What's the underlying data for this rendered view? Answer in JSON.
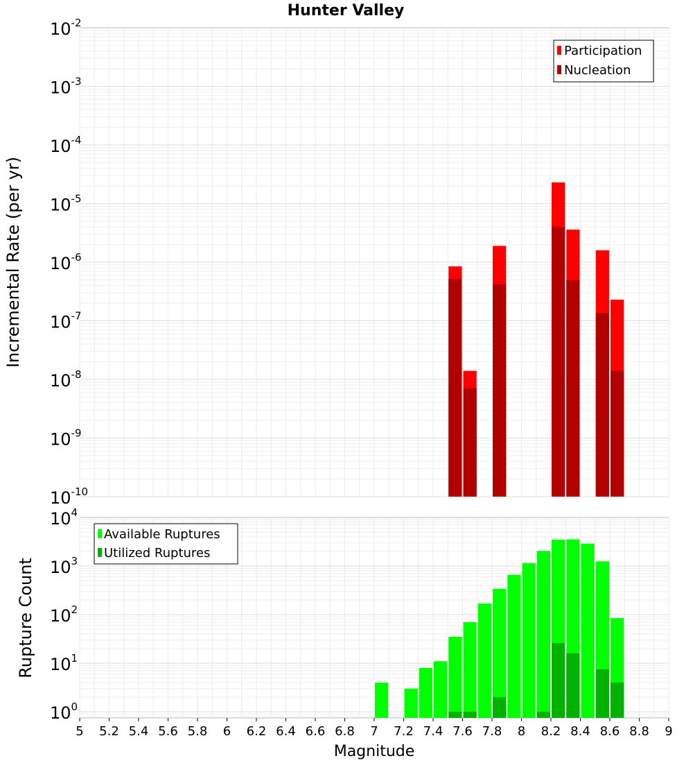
{
  "chart_data": [
    {
      "type": "bar",
      "title": "Hunter Valley",
      "xlabel": "",
      "ylabel": "Incremental Rate (per yr)",
      "yscale": "log",
      "ylim": [
        1e-10,
        0.01
      ],
      "xlim": [
        5,
        9
      ],
      "bar_width": 0.1,
      "legend": {
        "placement": "top-right",
        "entries": [
          "Participation",
          "Nucleation"
        ]
      },
      "x": [
        7.55,
        7.65,
        7.85,
        8.25,
        8.35,
        8.55,
        8.65
      ],
      "series": [
        {
          "name": "Participation",
          "color": "#ff0000",
          "values": [
            8.5e-07,
            1.4e-08,
            1.9e-06,
            2.3e-05,
            3.6e-06,
            1.6e-06,
            2.3e-07
          ]
        },
        {
          "name": "Nucleation",
          "color": "#b20000",
          "values": [
            5.2e-07,
            7e-09,
            4.2e-07,
            4e-06,
            4.9e-07,
            1.35e-07,
            1.4e-08
          ]
        }
      ]
    },
    {
      "type": "bar",
      "title": "",
      "xlabel": "Magnitude",
      "ylabel": "Rupture Count",
      "yscale": "log",
      "ylim": [
        0.75,
        10000
      ],
      "xlim": [
        5,
        9
      ],
      "bar_width": 0.1,
      "legend": {
        "placement": "top-left",
        "entries": [
          "Available Ruptures",
          "Utilized Ruptures"
        ]
      },
      "x_ticks": [
        "5",
        "5.2",
        "5.4",
        "5.6",
        "5.8",
        "6",
        "6.2",
        "6.4",
        "6.6",
        "6.8",
        "7",
        "7.2",
        "7.4",
        "7.6",
        "7.8",
        "8",
        "8.2",
        "8.4",
        "8.6",
        "8.8",
        "9"
      ],
      "x": [
        7.05,
        7.25,
        7.35,
        7.45,
        7.55,
        7.65,
        7.75,
        7.85,
        7.95,
        8.05,
        8.15,
        8.25,
        8.35,
        8.45,
        8.55,
        8.65
      ],
      "series": [
        {
          "name": "Available Ruptures",
          "color": "#00ff00",
          "values": [
            4,
            3,
            8,
            11,
            35,
            70,
            170,
            340,
            660,
            1150,
            2050,
            3500,
            3550,
            2900,
            1250,
            85
          ]
        },
        {
          "name": "Utilized Ruptures",
          "color": "#00b200",
          "values": [
            0,
            0,
            0,
            0,
            1,
            1,
            0,
            2,
            0,
            0,
            1,
            26,
            16,
            0,
            7.5,
            4
          ]
        }
      ]
    }
  ]
}
